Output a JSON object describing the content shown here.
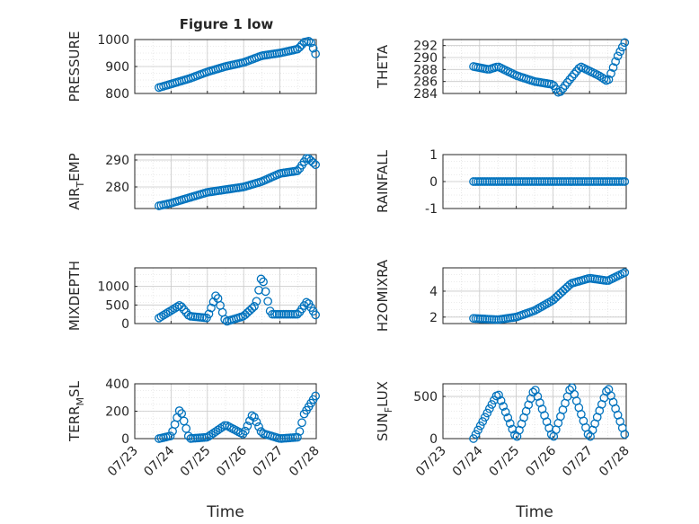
{
  "title": "Figure 1 low",
  "x_ticks": [
    "07/23",
    "07/24",
    "07/25",
    "07/26",
    "07/27",
    "07/28"
  ],
  "marker_color": "#0072BD",
  "chart_data": [
    {
      "type": "scatter",
      "ylabel": "PRESSURE",
      "ylim": [
        800,
        1000
      ],
      "yticks": [
        800,
        900,
        1000
      ],
      "grid": true,
      "x": [
        "07/23 16:00",
        "07/24 00:00",
        "07/24 12:00",
        "07/25 00:00",
        "07/25 12:00",
        "07/26 00:00",
        "07/26 12:00",
        "07/27 00:00",
        "07/27 12:00",
        "07/27 16:00",
        "07/27 20:00",
        "07/28 00:00"
      ],
      "y": [
        822,
        835,
        855,
        880,
        900,
        915,
        940,
        950,
        965,
        990,
        995,
        940
      ]
    },
    {
      "type": "scatter",
      "ylabel": "THETA",
      "ylim": [
        284,
        293
      ],
      "yticks": [
        284,
        286,
        288,
        290,
        292
      ],
      "grid": true,
      "x": [
        "07/23 20:00",
        "07/24 06:00",
        "07/24 12:00",
        "07/25 00:00",
        "07/25 12:00",
        "07/26 00:00",
        "07/26 04:00",
        "07/26 10:00",
        "07/26 18:00",
        "07/27 06:00",
        "07/27 12:00",
        "07/27 18:00",
        "07/28 00:00"
      ],
      "y": [
        288.5,
        288,
        288.5,
        287,
        286,
        285.5,
        284,
        286,
        288.5,
        287,
        286,
        290,
        293
      ]
    },
    {
      "type": "scatter",
      "ylabel": "AIR_TEMP",
      "ylim": [
        272,
        292
      ],
      "yticks": [
        280,
        290
      ],
      "grid": true,
      "x": [
        "07/23 16:00",
        "07/24 00:00",
        "07/24 12:00",
        "07/25 00:00",
        "07/25 12:00",
        "07/26 00:00",
        "07/26 12:00",
        "07/27 00:00",
        "07/27 12:00",
        "07/27 18:00",
        "07/28 00:00"
      ],
      "y": [
        273,
        274,
        276,
        278,
        279,
        280,
        282,
        285,
        286,
        291,
        288
      ]
    },
    {
      "type": "scatter",
      "ylabel": "RAINFALL",
      "ylim": [
        -1,
        1
      ],
      "yticks": [
        -1,
        0,
        1
      ],
      "grid": true,
      "x": [
        "07/23 20:00",
        "07/24 12:00",
        "07/25 12:00",
        "07/26 12:00",
        "07/27 12:00",
        "07/28 00:00"
      ],
      "y": [
        0,
        0,
        0,
        0,
        0,
        0
      ]
    },
    {
      "type": "scatter",
      "ylabel": "MIXDEPTH",
      "ylim": [
        0,
        1500
      ],
      "yticks": [
        0,
        500,
        1000
      ],
      "grid": true,
      "x": [
        "07/23 16:00",
        "07/24 00:00",
        "07/24 06:00",
        "07/24 12:00",
        "07/25 00:00",
        "07/25 06:00",
        "07/25 12:00",
        "07/26 00:00",
        "07/26 08:00",
        "07/26 12:00",
        "07/26 18:00",
        "07/27 12:00",
        "07/27 18:00",
        "07/28 00:00"
      ],
      "y": [
        150,
        350,
        500,
        200,
        150,
        800,
        50,
        200,
        500,
        1300,
        250,
        250,
        600,
        200
      ]
    },
    {
      "type": "scatter",
      "ylabel": "H2OMIXRA",
      "ylim": [
        1.5,
        5.8
      ],
      "yticks": [
        2,
        4
      ],
      "grid": true,
      "x": [
        "07/23 20:00",
        "07/24 12:00",
        "07/25 00:00",
        "07/25 12:00",
        "07/26 00:00",
        "07/26 12:00",
        "07/27 00:00",
        "07/27 12:00",
        "07/28 00:00"
      ],
      "y": [
        1.9,
        1.8,
        2.0,
        2.5,
        3.3,
        4.6,
        5.0,
        4.8,
        5.5
      ]
    },
    {
      "type": "scatter",
      "ylabel": "TERR_MSL",
      "ylim": [
        0,
        400
      ],
      "yticks": [
        0,
        200,
        400
      ],
      "grid": true,
      "x": [
        "07/23 16:00",
        "07/24 00:00",
        "07/24 06:00",
        "07/24 12:00",
        "07/25 00:00",
        "07/25 12:00",
        "07/26 00:00",
        "07/26 06:00",
        "07/26 12:00",
        "07/27 00:00",
        "07/27 12:00",
        "07/27 16:00",
        "07/28 00:00"
      ],
      "y": [
        0,
        20,
        220,
        0,
        10,
        100,
        30,
        180,
        40,
        0,
        10,
        180,
        320
      ]
    },
    {
      "type": "scatter",
      "ylabel": "SUN_FLUX",
      "ylim": [
        0,
        650
      ],
      "yticks": [
        0,
        500
      ],
      "grid": true,
      "x": [
        "07/23 20:00",
        "07/24 12:00",
        "07/25 00:00",
        "07/25 12:00",
        "07/26 00:00",
        "07/26 12:00",
        "07/27 00:00",
        "07/27 12:00",
        "07/28 00:00"
      ],
      "y": [
        0,
        540,
        0,
        600,
        0,
        630,
        0,
        610,
        0
      ]
    }
  ],
  "xlabel": "Time",
  "ylabel_main_parts": [
    {
      "pre": "AIR",
      "sub": "T",
      "post": "EMP"
    },
    {
      "pre": "TERR",
      "sub": "M",
      "post": "SL"
    },
    {
      "pre": "SUN",
      "sub": "F",
      "post": "LUX"
    }
  ]
}
